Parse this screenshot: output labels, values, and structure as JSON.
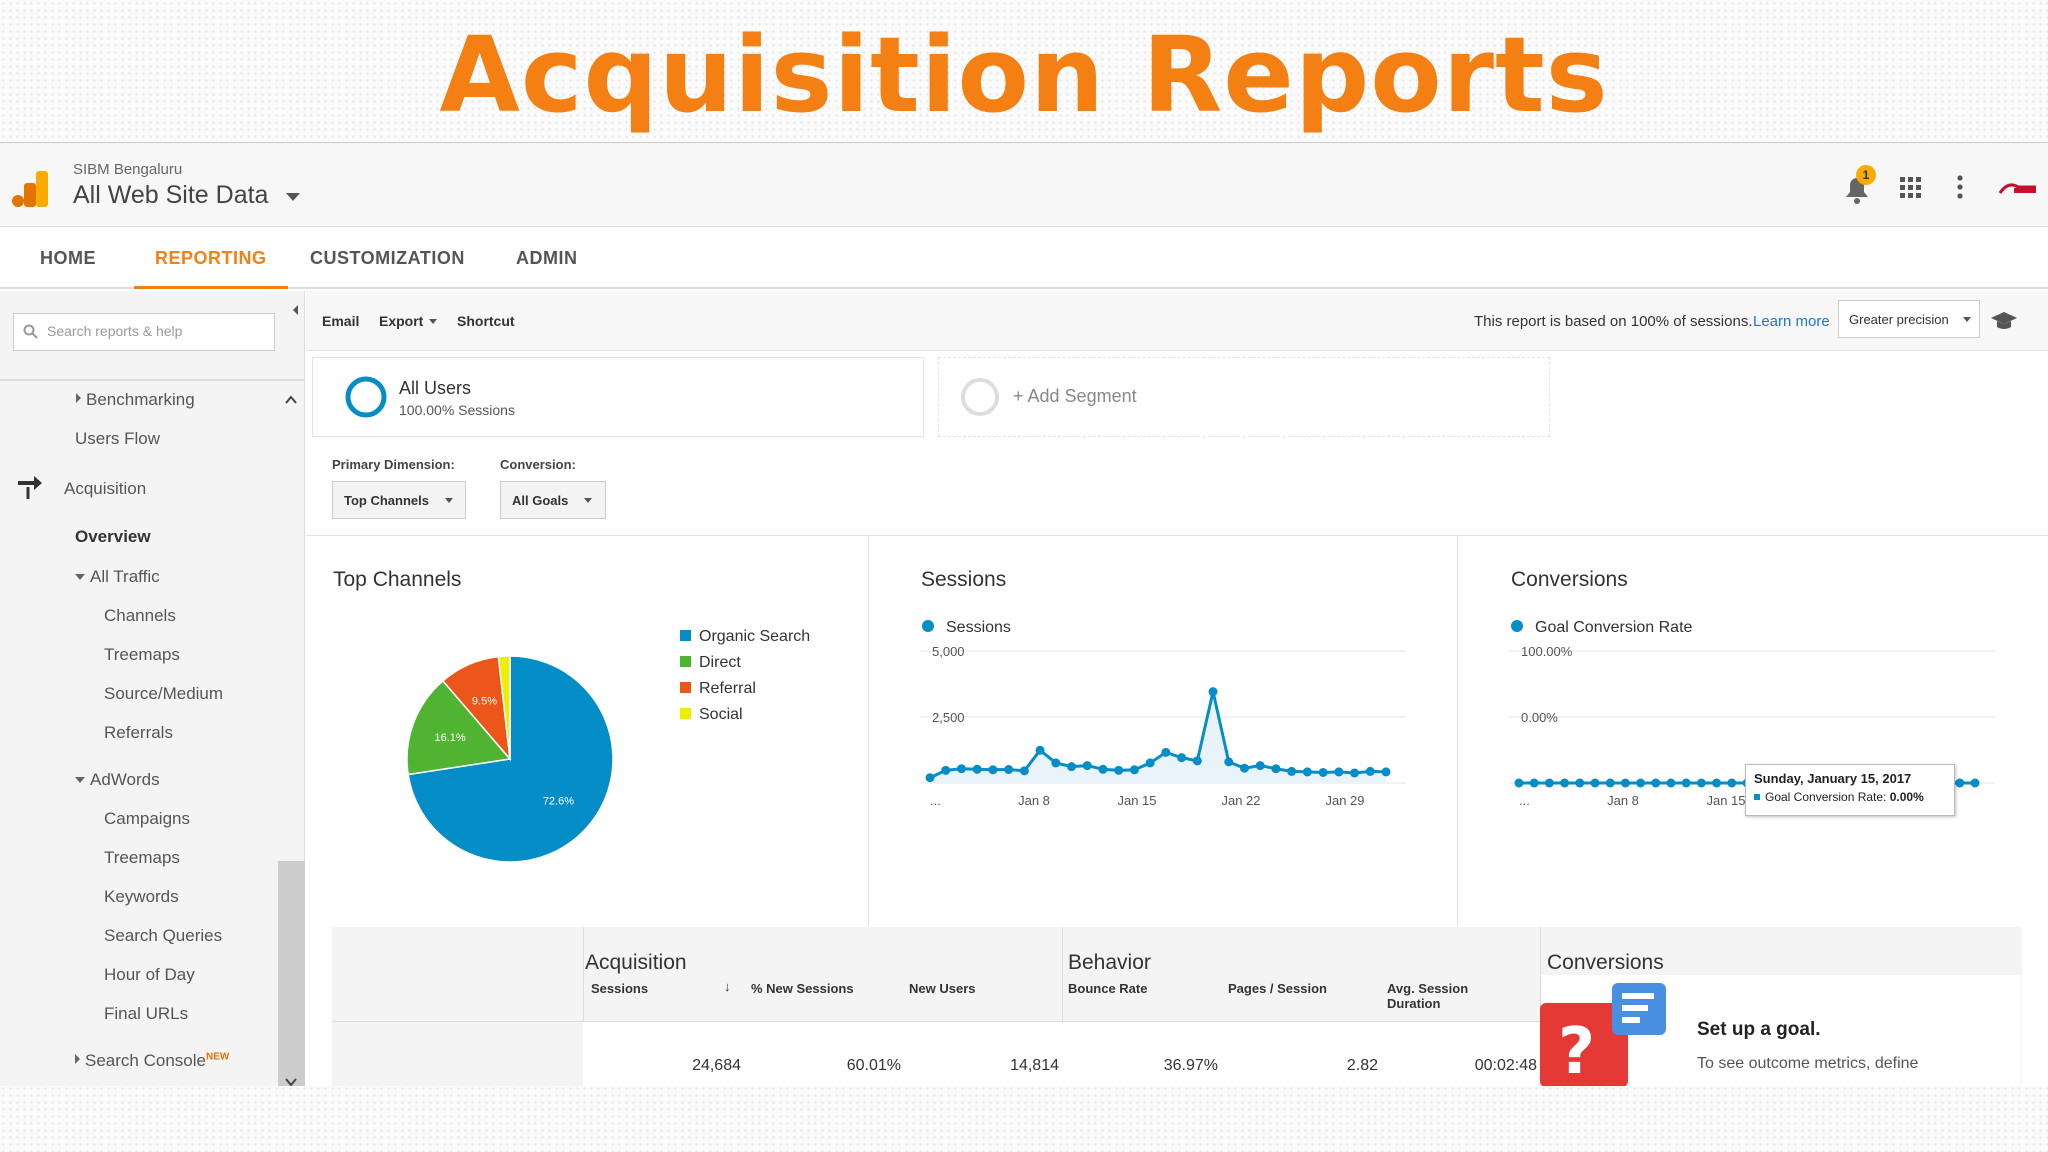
{
  "slide_title": "Acquisition Reports",
  "header": {
    "org": "SIBM Bengaluru",
    "view": "All Web Site Data",
    "notification_count": "1",
    "icons": [
      "bell-icon",
      "apps-grid-icon",
      "more-vert-icon",
      "sibm-logo"
    ]
  },
  "nav": {
    "tabs": [
      "HOME",
      "REPORTING",
      "CUSTOMIZATION",
      "ADMIN"
    ],
    "active": "REPORTING"
  },
  "sidebar": {
    "search_placeholder": "Search reports & help",
    "items": [
      "Benchmarking",
      "Users Flow",
      "Acquisition",
      "Overview",
      "All Traffic",
      "Channels",
      "Treemaps",
      "Source/Medium",
      "Referrals",
      "AdWords",
      "Campaigns",
      "Treemaps",
      "Keywords",
      "Search Queries",
      "Hour of Day",
      "Final URLs",
      "Search Console"
    ],
    "new_badge": "NEW"
  },
  "toolbar": {
    "email": "Email",
    "export": "Export",
    "shortcut": "Shortcut",
    "sampling": "This report is based on 100% of sessions.",
    "learn_more": "Learn more",
    "precision": "Greater precision"
  },
  "segments": {
    "all_users": "All Users",
    "all_users_sub": "100.00% Sessions",
    "add": "+ Add Segment"
  },
  "dimensions": {
    "primary_label": "Primary Dimension:",
    "primary_value": "Top Channels",
    "conversion_label": "Conversion:",
    "conversion_value": "All Goals"
  },
  "panels": {
    "top_channels": "Top Channels",
    "sessions": "Sessions",
    "conversions": "Conversions"
  },
  "colors": {
    "accent": "#f47f13",
    "organic": "#058dc7",
    "direct": "#50b432",
    "referral": "#ed561b",
    "social": "#edef00"
  },
  "chart_data": [
    {
      "type": "pie",
      "title": "Top Channels",
      "categories": [
        "Organic Search",
        "Direct",
        "Referral",
        "Social"
      ],
      "values": [
        72.6,
        16.1,
        9.5,
        1.8
      ],
      "labels": [
        "72.6%",
        "16.1%",
        "9.5%",
        ""
      ]
    },
    {
      "type": "line",
      "title": "Sessions",
      "series": [
        {
          "name": "Sessions",
          "values": [
            200,
            480,
            540,
            520,
            500,
            510,
            460,
            1240,
            760,
            620,
            660,
            520,
            480,
            500,
            760,
            1160,
            960,
            840,
            3460,
            800,
            560,
            660,
            540,
            440,
            420,
            400,
            420,
            380,
            440,
            420
          ]
        }
      ],
      "x_ticks": [
        "...",
        "Jan 8",
        "Jan 15",
        "Jan 22",
        "Jan 29"
      ],
      "y_ticks": [
        "5,000",
        "2,500"
      ],
      "ylim": [
        0,
        5000
      ]
    },
    {
      "type": "line",
      "title": "Conversions",
      "series": [
        {
          "name": "Goal Conversion Rate",
          "values": [
            0,
            0,
            0,
            0,
            0,
            0,
            0,
            0,
            0,
            0,
            0,
            0,
            0,
            0,
            0,
            0,
            0,
            0,
            0,
            0,
            0,
            0,
            0,
            0,
            0,
            0,
            0,
            0,
            0,
            0,
            0
          ]
        }
      ],
      "x_ticks": [
        "...",
        "Jan 8",
        "Jan 15",
        "Jan 22",
        "Jan 29"
      ],
      "y_ticks": [
        "100.00%",
        "0.00%"
      ],
      "ylim": [
        0,
        100
      ],
      "tooltip": {
        "date": "Sunday, January 15, 2017",
        "text": "Goal Conversion Rate:",
        "value": "0.00%"
      }
    }
  ],
  "table": {
    "groups": [
      "Acquisition",
      "Behavior",
      "Conversions"
    ],
    "columns": [
      "Sessions",
      "% New Sessions",
      "New Users",
      "Bounce Rate",
      "Pages / Session",
      "Avg. Session Duration"
    ],
    "values": [
      "24,684",
      "60.01%",
      "14,814",
      "36.97%",
      "2.82",
      "00:02:48"
    ],
    "goal_title": "Set up a goal.",
    "goal_text": "To see outcome metrics, define"
  }
}
